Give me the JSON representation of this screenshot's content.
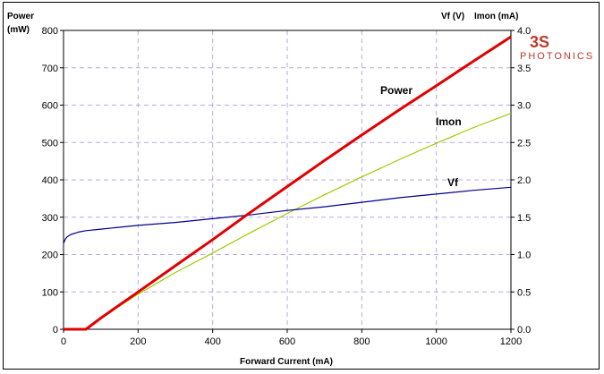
{
  "chart_data": {
    "type": "line",
    "xlabel": "Forward Current (mA)",
    "x_ticks": [
      0,
      200,
      400,
      600,
      800,
      1000,
      1200
    ],
    "xlim": [
      0,
      1200
    ],
    "y_left": {
      "label_line1": "Power",
      "label_line2": "(mW)",
      "ticks": [
        0,
        100,
        200,
        300,
        400,
        500,
        600,
        700,
        800
      ],
      "lim": [
        0,
        800
      ]
    },
    "y_right": {
      "label_vf": "Vf (V)",
      "label_imon": "Imon (mA)",
      "ticks": [
        "0.0",
        "0.5",
        "1.0",
        "1.5",
        "2.0",
        "2.5",
        "3.0",
        "3.5",
        "4.0"
      ],
      "lim": [
        0,
        4
      ]
    },
    "grid": true,
    "series": [
      {
        "name": "Power",
        "axis": "left",
        "color": "#e00000",
        "x": [
          0,
          60,
          100,
          200,
          300,
          400,
          500,
          600,
          700,
          800,
          900,
          1000,
          1100,
          1200
        ],
        "values": [
          0,
          0,
          30,
          100,
          170,
          240,
          312,
          382,
          452,
          520,
          587,
          652,
          718,
          783
        ]
      },
      {
        "name": "Imon",
        "axis": "right",
        "color": "#9acd00",
        "x": [
          0,
          60,
          100,
          200,
          300,
          400,
          500,
          600,
          700,
          800,
          900,
          1000,
          1100,
          1200
        ],
        "values": [
          0,
          0,
          0.15,
          0.47,
          0.76,
          1.02,
          1.29,
          1.55,
          1.8,
          2.04,
          2.27,
          2.49,
          2.7,
          2.89
        ]
      },
      {
        "name": "Vf",
        "axis": "right",
        "color": "#00008b",
        "x": [
          0,
          5,
          10,
          20,
          40,
          60,
          100,
          200,
          300,
          400,
          500,
          600,
          700,
          800,
          900,
          1000,
          1100,
          1200
        ],
        "values": [
          1.15,
          1.21,
          1.24,
          1.27,
          1.3,
          1.32,
          1.34,
          1.39,
          1.43,
          1.48,
          1.53,
          1.59,
          1.64,
          1.7,
          1.76,
          1.81,
          1.86,
          1.9
        ]
      }
    ]
  },
  "logo": {
    "mark": "3S",
    "text": "PHOTONICS",
    "color": "#c0392b"
  }
}
